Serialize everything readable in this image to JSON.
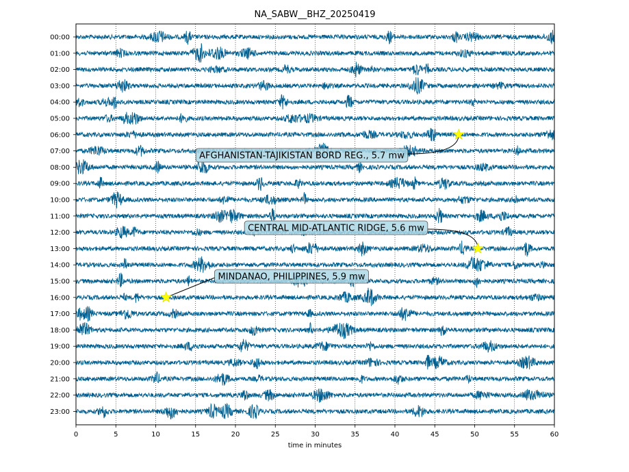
{
  "chart_data": {
    "type": "line",
    "title": "NA_SABW__BHZ_20250419",
    "xlabel": "time in minutes",
    "ylabel": "",
    "xlim": [
      0,
      60
    ],
    "x_ticks": [
      0,
      5,
      10,
      15,
      20,
      25,
      30,
      35,
      40,
      45,
      50,
      55,
      60
    ],
    "x_tick_labels": [
      "0",
      "5",
      "10",
      "15",
      "20",
      "25",
      "30",
      "35",
      "40",
      "45",
      "50",
      "55",
      "60"
    ],
    "rows": [
      "00:00",
      "01:00",
      "02:00",
      "03:00",
      "04:00",
      "05:00",
      "06:00",
      "07:00",
      "08:00",
      "09:00",
      "10:00",
      "11:00",
      "12:00",
      "13:00",
      "14:00",
      "15:00",
      "16:00",
      "17:00",
      "18:00",
      "19:00",
      "20:00",
      "21:00",
      "22:00",
      "23:00"
    ],
    "grid": {
      "vertical": true,
      "style": "dotted"
    },
    "trace_color": "#005f8f",
    "marker_color": "#ffff00",
    "events": [
      {
        "row": "06:00",
        "minute": 48.0,
        "label": "AFGHANISTAN-TAJIKISTAN BORD REG., 5.7 mw"
      },
      {
        "row": "13:00",
        "minute": 50.4,
        "label": "CENTRAL MID-ATLANTIC RIDGE, 5.6 mw"
      },
      {
        "row": "16:00",
        "minute": 11.3,
        "label": "MINDANAO, PHILIPPINES, 5.9 mw"
      }
    ]
  }
}
